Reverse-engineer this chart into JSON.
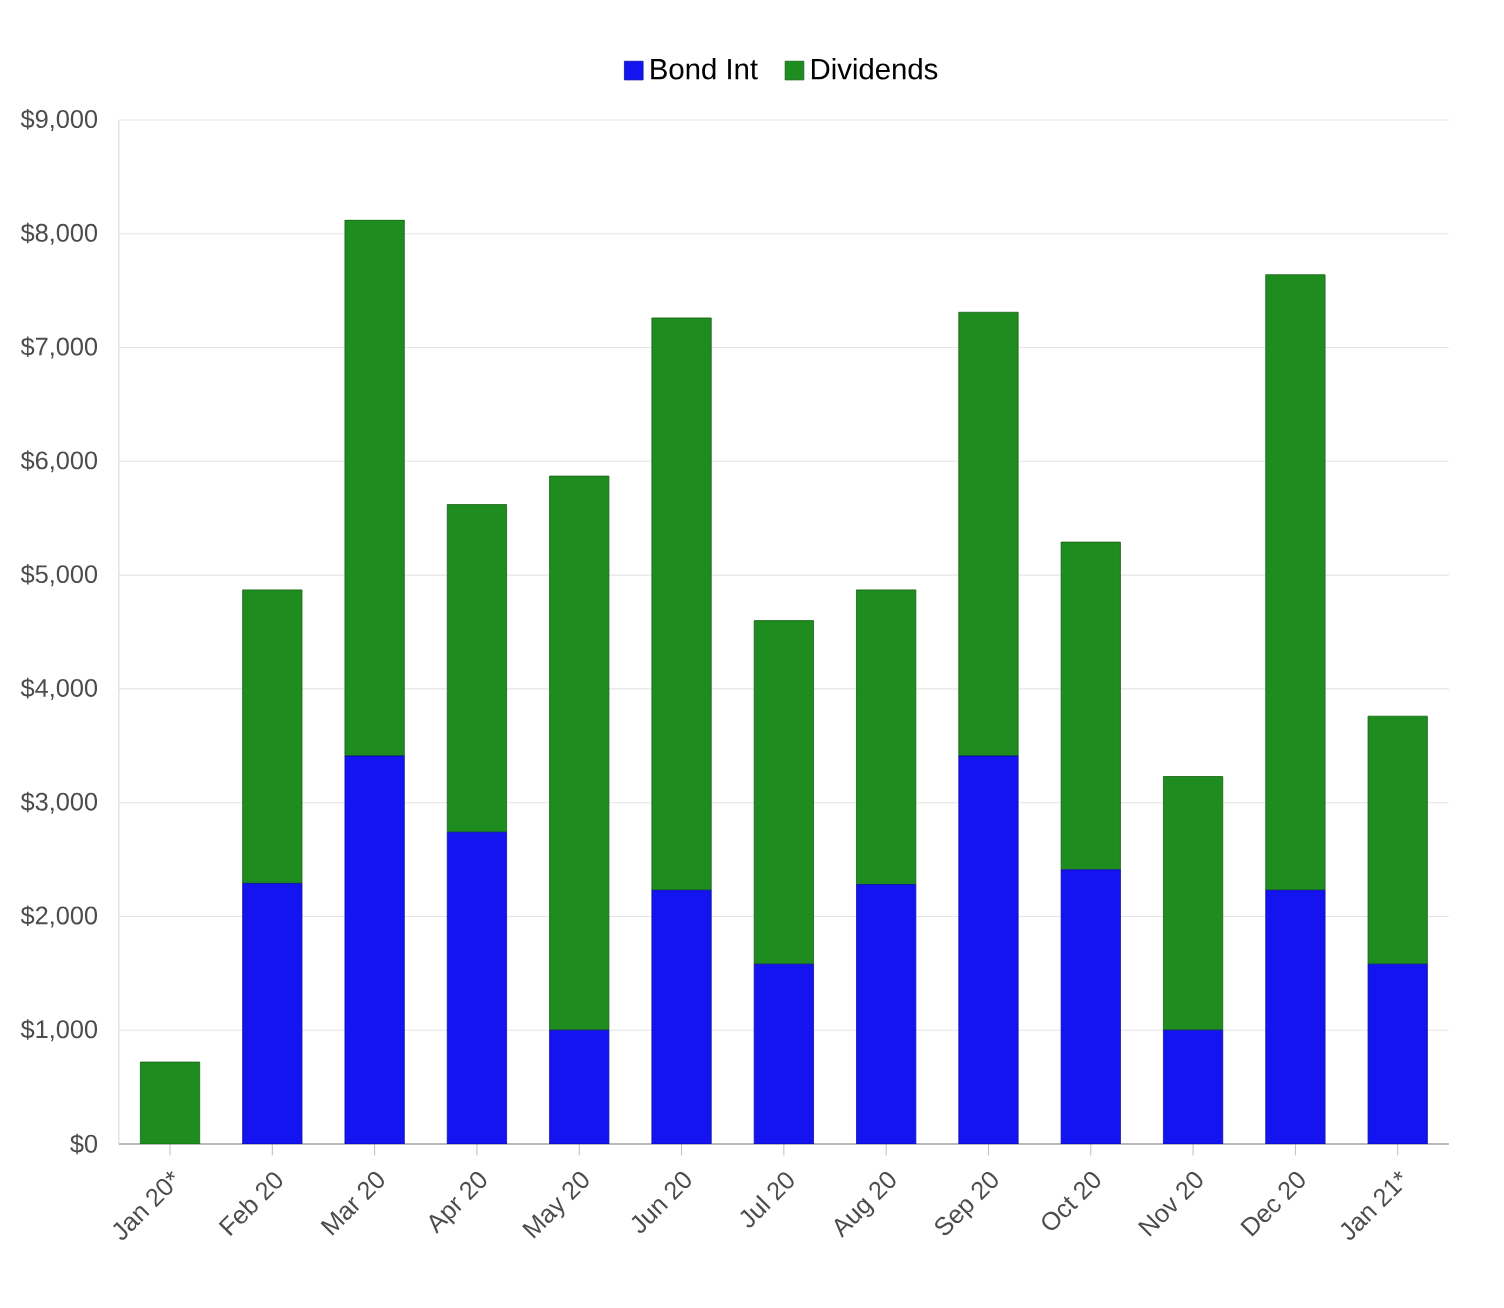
{
  "chart_data": {
    "type": "bar",
    "stacked": true,
    "legend": "top",
    "grid": "y",
    "categories": [
      "Jan 20*",
      "Feb 20",
      "Mar 20",
      "Apr 20",
      "May 20",
      "Jun 20",
      "Jul 20",
      "Aug 20",
      "Sep 20",
      "Oct 20",
      "Nov 20",
      "Dec 20",
      "Jan 21*"
    ],
    "series": [
      {
        "name": "Bond Int",
        "color": "#1414f0",
        "values": [
          0,
          2290,
          3410,
          2740,
          1000,
          2230,
          1580,
          2280,
          3410,
          2410,
          1000,
          2230,
          1580
        ]
      },
      {
        "name": "Dividends",
        "color": "#1e8c1e",
        "values": [
          720,
          2580,
          4710,
          2880,
          4870,
          5030,
          3020,
          2590,
          3900,
          2880,
          2230,
          5410,
          2180
        ]
      }
    ],
    "ylim": [
      0,
      9000
    ],
    "yticks": [
      {
        "value": 0,
        "label": "$0"
      },
      {
        "value": 1000,
        "label": "$1,000"
      },
      {
        "value": 2000,
        "label": "$2,000"
      },
      {
        "value": 3000,
        "label": "$3,000"
      },
      {
        "value": 4000,
        "label": "$4,000"
      },
      {
        "value": 5000,
        "label": "$5,000"
      },
      {
        "value": 6000,
        "label": "$6,000"
      },
      {
        "value": 7000,
        "label": "$7,000"
      },
      {
        "value": 8000,
        "label": "$8,000"
      },
      {
        "value": 9000,
        "label": "$9,000"
      }
    ]
  }
}
